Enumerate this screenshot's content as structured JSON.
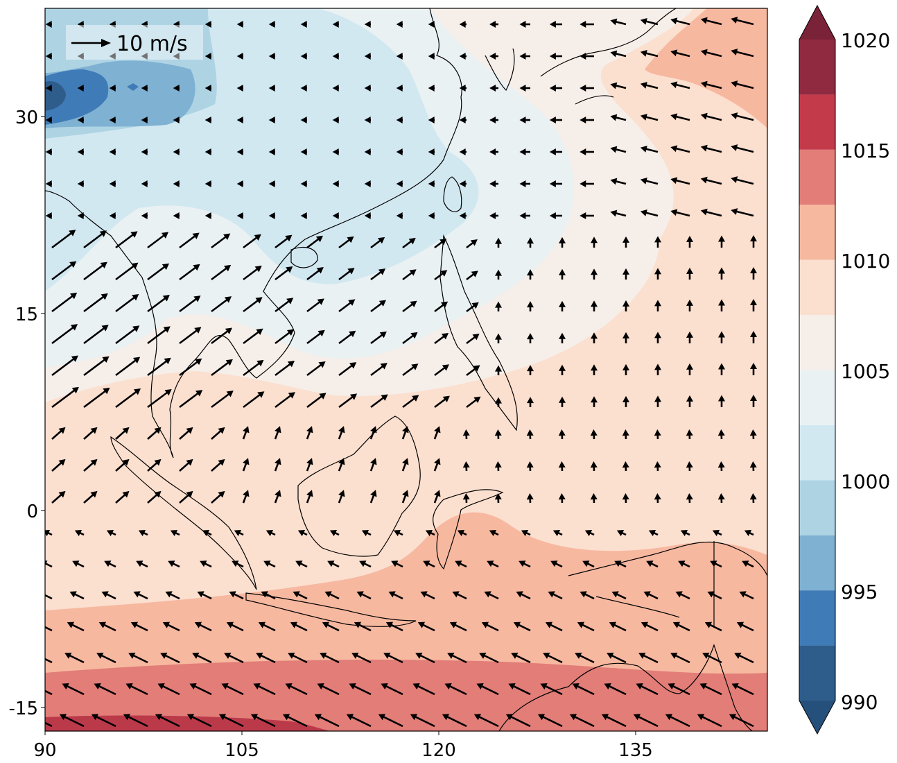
{
  "map": {
    "x_ticks": [
      "90",
      "105",
      "120",
      "135"
    ],
    "y_ticks": [
      "30",
      "15",
      "0",
      "-15"
    ],
    "extent": {
      "lon": [
        90,
        145
      ],
      "lat": [
        -17,
        38
      ]
    },
    "ocean_colors": {
      "band_1020": "#bb3a4a",
      "band_1015": "#e27d78",
      "band_1012": "#f7b8a0",
      "band_1009": "#fbdfcf",
      "band_1006": "#f6eee9",
      "band_1004": "#eaf1f3",
      "band_1001": "#d2e8f1",
      "band_998": "#aed4e4",
      "band_996": "#7fb1d3",
      "band_994": "#3f7bb7",
      "band_991": "#2e5d8c"
    },
    "coastline_color": "#000000",
    "wind_vector_color": "#000000"
  },
  "wind_key": {
    "label": "10 m/s",
    "icon": "arrow-right-icon"
  },
  "colorbar": {
    "labels": [
      "1020",
      "1015",
      "1010",
      "1005",
      "1000",
      "995",
      "990"
    ],
    "min": 990,
    "max": 1020,
    "bands": [
      {
        "from": 1017.5,
        "to": 1020,
        "color": "#902a40"
      },
      {
        "from": 1015,
        "to": 1017.5,
        "color": "#c33a4b"
      },
      {
        "from": 1012.5,
        "to": 1015,
        "color": "#e27d78"
      },
      {
        "from": 1010,
        "to": 1012.5,
        "color": "#f7b8a0"
      },
      {
        "from": 1007.5,
        "to": 1010,
        "color": "#fbdfcf"
      },
      {
        "from": 1005,
        "to": 1007.5,
        "color": "#f6eee9"
      },
      {
        "from": 1002.5,
        "to": 1005,
        "color": "#eaf1f3"
      },
      {
        "from": 1000,
        "to": 1002.5,
        "color": "#d2e8f1"
      },
      {
        "from": 997.5,
        "to": 1000,
        "color": "#aed4e4"
      },
      {
        "from": 995,
        "to": 997.5,
        "color": "#7fb1d3"
      },
      {
        "from": 992.5,
        "to": 995,
        "color": "#3f7bb7"
      },
      {
        "from": 990,
        "to": 992.5,
        "color": "#2e5d8c"
      }
    ],
    "over_color": "#7a2238",
    "under_color": "#25507c"
  }
}
